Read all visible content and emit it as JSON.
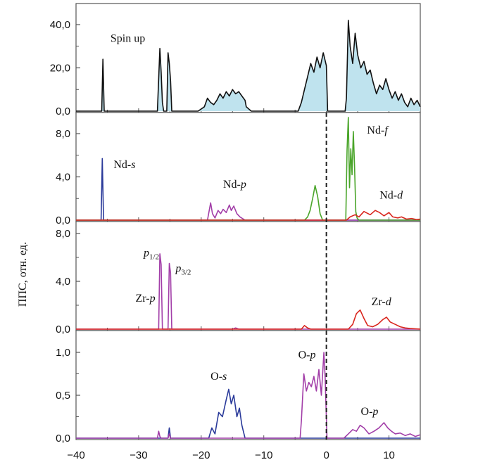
{
  "figure": {
    "ylabel": "ППС, отн. ед.",
    "x_ticks": [
      "−40",
      "−30",
      "−20",
      "−10",
      "0",
      "10"
    ],
    "colors": {
      "frame": "#555555",
      "total": "#111111",
      "fill": "#bfe3ee",
      "s": "#2a3a9a",
      "p": "#a23ea8",
      "d": "#d9251d",
      "f": "#4aa52a",
      "dashed": "#222222"
    }
  },
  "chart_data": [
    {
      "type": "line",
      "panel": "total",
      "xlim": [
        -40,
        15
      ],
      "ylim": [
        0,
        50
      ],
      "y_ticks": [
        "0,0",
        "20,0",
        "40,0"
      ],
      "y_tick_values": [
        0,
        20,
        40
      ],
      "grid": false,
      "labels": [
        {
          "text": "Spin up",
          "x": -34.5,
          "y": 32
        }
      ],
      "series": [
        {
          "color": "total",
          "fill": true,
          "x": [
            -40,
            -35.9,
            -35.7,
            -35.5,
            -27,
            -26.6,
            -26.4,
            -26.2,
            -26,
            -25.5,
            -25.3,
            -25.1,
            -24.9,
            -24.7,
            -20.5,
            -19.5,
            -19,
            -18.5,
            -18,
            -17.5,
            -17,
            -16.5,
            -16,
            -15.5,
            -15,
            -14.5,
            -14,
            -13.5,
            -13,
            -12.8,
            -12,
            -4.5,
            -4,
            -3.5,
            -3,
            -2.5,
            -2,
            -1.5,
            -1,
            -0.5,
            0,
            0.2,
            3,
            3.2,
            3.5,
            3.8,
            4.2,
            4.6,
            5,
            5.5,
            6,
            6.5,
            7,
            7.5,
            8,
            8.5,
            9,
            9.5,
            10,
            10.5,
            11,
            11.5,
            12,
            12.5,
            13,
            13.5,
            14,
            14.5,
            15
          ],
          "values": [
            0,
            0,
            24,
            0,
            0,
            29,
            18,
            4,
            0,
            0,
            27,
            22,
            14,
            0,
            0,
            2,
            6,
            4,
            3,
            5,
            8,
            6,
            9,
            7,
            10,
            8,
            9,
            7,
            5,
            2,
            0,
            0,
            4,
            10,
            16,
            22,
            18,
            25,
            20,
            27,
            21,
            0,
            0,
            6,
            42,
            30,
            22,
            36,
            26,
            20,
            23,
            17,
            19,
            13,
            8,
            12,
            10,
            15,
            10,
            6,
            9,
            5,
            8,
            4,
            2,
            6,
            3,
            5,
            2
          ]
        }
      ]
    },
    {
      "type": "line",
      "panel": "Nd",
      "xlim": [
        -40,
        15
      ],
      "ylim": [
        0,
        9.8
      ],
      "y_ticks": [
        "0,0",
        "4,0",
        "8,0"
      ],
      "y_tick_values": [
        0,
        4,
        8
      ],
      "grid": false,
      "labels": [
        {
          "text": "Nd-s",
          "x": -34,
          "y": 4.8
        },
        {
          "text": "Nd-p",
          "x": -16.5,
          "y": 3.0
        },
        {
          "text": "Nd-f",
          "x": 6.5,
          "y": 8.0
        },
        {
          "text": "Nd-d",
          "x": 8.5,
          "y": 2.0
        }
      ],
      "series": [
        {
          "color": "s",
          "x": [
            -40,
            -36.0,
            -35.8,
            -35.6,
            15
          ],
          "values": [
            0,
            0,
            5.7,
            0,
            0
          ]
        },
        {
          "color": "p",
          "x": [
            -40,
            -19,
            -18.5,
            -18.2,
            -17.8,
            -17.3,
            -16.9,
            -16.5,
            -16,
            -15.5,
            -15.2,
            -14.8,
            -14.3,
            -13.8,
            -13,
            15
          ],
          "values": [
            0,
            0,
            1.6,
            0.6,
            0.2,
            0.9,
            0.6,
            1.0,
            0.7,
            1.4,
            0.9,
            1.3,
            0.6,
            0.3,
            0,
            0
          ]
        },
        {
          "color": "f",
          "x": [
            -40,
            -3.5,
            -3,
            -2.6,
            -2.2,
            -1.8,
            -1.4,
            -1.0,
            -0.6,
            3.1,
            3.3,
            3.5,
            3.7,
            3.9,
            4.1,
            4.3,
            4.5,
            4.7,
            4.9,
            5.2,
            15
          ],
          "values": [
            0,
            0,
            0.3,
            0.9,
            2.0,
            3.2,
            2.2,
            0.6,
            0,
            0,
            6.5,
            9.5,
            3,
            6.6,
            4.2,
            8.2,
            5.1,
            0.8,
            0.2,
            0,
            0
          ]
        },
        {
          "color": "d",
          "x": [
            -40,
            3.2,
            3.8,
            4.6,
            5.2,
            6,
            7,
            7.8,
            8.5,
            9.2,
            10,
            10.6,
            11.4,
            12,
            12.8,
            13.6,
            14.4,
            15
          ],
          "values": [
            0,
            0,
            0.3,
            0.5,
            0.3,
            0.8,
            0.5,
            0.9,
            0.7,
            0.4,
            0.7,
            0.3,
            0.2,
            0.3,
            0.1,
            0.15,
            0.05,
            0.1
          ]
        }
      ]
    },
    {
      "type": "line",
      "panel": "Zr",
      "xlim": [
        -40,
        15
      ],
      "ylim": [
        0,
        8.4
      ],
      "y_ticks": [
        "0,0",
        "4,0",
        "8,0"
      ],
      "y_tick_values": [
        0,
        4,
        8
      ],
      "grid": false,
      "labels": [
        {
          "text": "p1/2",
          "x": -29.2,
          "y": 6.1
        },
        {
          "text": "p3/2",
          "x": -24.1,
          "y": 4.8
        },
        {
          "text": "Zr-p",
          "x": -30.5,
          "y": 2.3
        },
        {
          "text": "Zr-d",
          "x": 7.2,
          "y": 2.0
        }
      ],
      "series": [
        {
          "color": "p",
          "x": [
            -40,
            -26.8,
            -26.6,
            -26.4,
            -26.2,
            -25.3,
            -25.1,
            -24.9,
            -24.7,
            -15,
            -14.5,
            -14,
            15
          ],
          "values": [
            0,
            0,
            6.3,
            5.4,
            0,
            0,
            5.5,
            4.7,
            0,
            0,
            0.1,
            0,
            0
          ]
        },
        {
          "color": "d",
          "x": [
            -40,
            -4,
            -3.5,
            -3,
            -2.5,
            3.5,
            4.2,
            4.8,
            5.4,
            6,
            6.6,
            7.4,
            8.2,
            9,
            9.6,
            10.2,
            11,
            11.8,
            12.6,
            13.4,
            15
          ],
          "values": [
            0,
            0,
            0.3,
            0.1,
            0,
            0,
            0.4,
            1.3,
            1.6,
            0.9,
            0.3,
            0.2,
            0.4,
            0.8,
            1.0,
            0.6,
            0.4,
            0.2,
            0.1,
            0.05,
            0
          ]
        }
      ]
    },
    {
      "type": "line",
      "panel": "O",
      "xlim": [
        -40,
        15
      ],
      "ylim": [
        0,
        1.15
      ],
      "y_ticks": [
        "0,0",
        "0,5",
        "1,0"
      ],
      "y_tick_values": [
        0,
        0.5,
        1.0
      ],
      "grid": false,
      "labels": [
        {
          "text": "O-s",
          "x": -18.5,
          "y": 0.68
        },
        {
          "text": "O-p",
          "x": -4.5,
          "y": 0.93
        },
        {
          "text": "O-p",
          "x": 5.5,
          "y": 0.27
        }
      ],
      "series": [
        {
          "color": "s",
          "x": [
            -40,
            -25.3,
            -25.1,
            -24.9,
            -18.8,
            -18.3,
            -17.8,
            -17.2,
            -16.6,
            -16,
            -15.6,
            -15.2,
            -14.8,
            -14.3,
            -13.9,
            -13.5,
            -13,
            15
          ],
          "values": [
            0,
            0,
            0.12,
            0,
            0,
            0.12,
            0.05,
            0.3,
            0.25,
            0.45,
            0.57,
            0.4,
            0.5,
            0.25,
            0.35,
            0.15,
            0,
            0
          ]
        },
        {
          "color": "p",
          "x": [
            -40,
            -27,
            -26.8,
            -26.6,
            -26.4,
            -25.3,
            -25.1,
            -24.9,
            -4.2,
            -4,
            -3.6,
            -3.2,
            -2.8,
            -2.4,
            -2,
            -1.6,
            -1.2,
            -0.8,
            -0.4,
            -0.2,
            0.1,
            2.8,
            3.5,
            4.2,
            4.8,
            5.4,
            6,
            6.8,
            7.6,
            8.4,
            9.2,
            9.8,
            10.4,
            11,
            11.8,
            12.6,
            13.4,
            14.2,
            15
          ],
          "values": [
            0,
            0,
            0.08,
            0.02,
            0,
            0,
            0.05,
            0,
            0,
            0.2,
            0.75,
            0.55,
            0.65,
            0.6,
            0.72,
            0.55,
            0.8,
            0.5,
            1.0,
            0.7,
            0,
            0,
            0.05,
            0.1,
            0.08,
            0.15,
            0.12,
            0.05,
            0.08,
            0.12,
            0.18,
            0.12,
            0.08,
            0.05,
            0.06,
            0.03,
            0.05,
            0.02,
            0.04
          ]
        }
      ]
    }
  ]
}
